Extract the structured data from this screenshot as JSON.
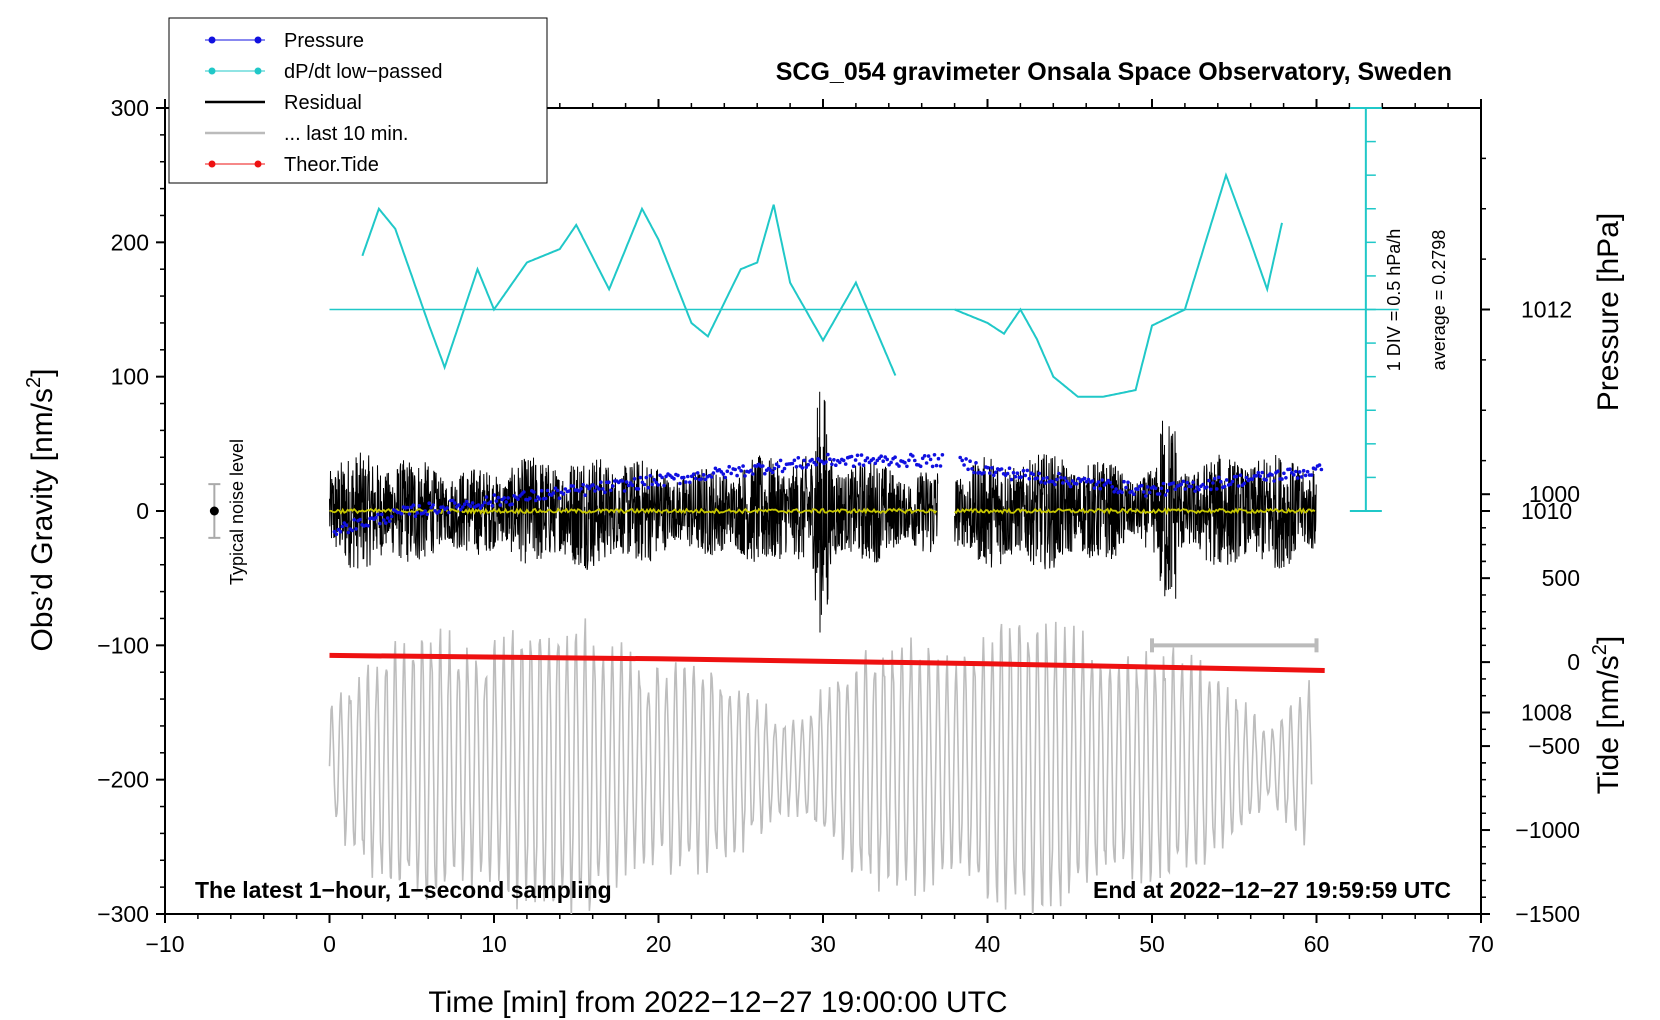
{
  "chart_data": {
    "type": "line",
    "title": "SCG_054 gravimeter Onsala Space Observatory, Sweden",
    "xlabel": "Time [min] from 2022−12−27 19:00:00 UTC",
    "xlim": [
      -10,
      70
    ],
    "xticks": [
      -10,
      0,
      10,
      20,
      30,
      40,
      50,
      60,
      70
    ],
    "xtick_labels": [
      "−10",
      "0",
      "10",
      "20",
      "30",
      "40",
      "50",
      "60",
      "70"
    ],
    "left_axis": {
      "label_main": "Obs’d Gravity [nm/s",
      "label_sup": "2",
      "label_end": "]",
      "ylim": [
        -300,
        300
      ],
      "ticks": [
        300,
        200,
        100,
        0,
        -100,
        -200,
        -300
      ],
      "tick_labels": [
        "300",
        "200",
        "100",
        "0",
        "−100",
        "−200",
        "−300"
      ]
    },
    "right_pressure_axis": {
      "label": "Pressure [hPa]",
      "ticks": [
        1012,
        1010,
        1008
      ],
      "tick_labels": [
        "1012",
        "1010",
        "1008"
      ],
      "range_hpa": [
        1006,
        1014
      ]
    },
    "right_tide_axis": {
      "label_main": "Tide [nm/s",
      "label_sup": "2",
      "label_end": "]",
      "ticks": [
        1000,
        500,
        0,
        -500,
        -1000,
        -1500
      ],
      "tick_labels": [
        "1000",
        "500",
        "0",
        "−500",
        "−1000",
        "−1500"
      ],
      "range": [
        -1500,
        3300
      ]
    },
    "legend": {
      "placement": "top-left",
      "entries": [
        {
          "label": "Pressure",
          "color": "#1010e0",
          "marker": "dot"
        },
        {
          "label": "dP/dt low−passed",
          "color": "#20c8c8",
          "marker": "dot"
        },
        {
          "label": "Residual",
          "color": "#000000",
          "marker": "line"
        },
        {
          "label": "... last 10 min.",
          "color": "#bbbbbb",
          "marker": "line"
        },
        {
          "label": "Theor.Tide",
          "color": "#ee1111",
          "marker": "dot"
        }
      ]
    },
    "series": [
      {
        "name": "Pressure",
        "unit": "hPa",
        "x": [
          0,
          5,
          10,
          15,
          20,
          25,
          30,
          35,
          37,
          38,
          40,
          45,
          50,
          55,
          60
        ],
        "values": [
          1009.8,
          1010.0,
          1010.1,
          1010.2,
          1010.3,
          1010.4,
          1010.5,
          1010.5,
          1010.5,
          1010.5,
          1010.4,
          1010.3,
          1010.2,
          1010.3,
          1010.4
        ]
      },
      {
        "name": "dP/dt low-passed",
        "unit": "left-axis nm/s^2 equivalent",
        "x": [
          2,
          3,
          4,
          6,
          7,
          9,
          10,
          12,
          14,
          15,
          17,
          19,
          20,
          22,
          23,
          25,
          26,
          27,
          28,
          30,
          32,
          34.5,
          38,
          40,
          41,
          42,
          43,
          44,
          45.5,
          47,
          49,
          50,
          52,
          54.5,
          56,
          57,
          58
        ],
        "values": [
          190,
          225,
          210,
          140,
          107,
          180,
          150,
          185,
          195,
          213,
          165,
          225,
          202,
          140,
          130,
          180,
          185,
          228,
          170,
          127,
          170,
          98,
          150,
          140,
          132,
          150,
          128,
          100,
          85,
          85,
          90,
          138,
          150,
          250,
          200,
          165,
          220
        ]
      },
      {
        "name": "Residual",
        "unit": "nm/s^2",
        "x_range": [
          0,
          60
        ],
        "gap": [
          37,
          38
        ],
        "amplitude_typical": 40,
        "amplitude_max": 130,
        "min": -120
      },
      {
        "name": "Residual (smoothed)",
        "unit": "nm/s^2",
        "x_range": [
          0,
          60
        ],
        "values_mean": 0
      },
      {
        "name": "... last 10 min.",
        "unit": "nm/s^2 (offset)",
        "x_range": [
          0,
          60
        ],
        "center": -190,
        "amplitude_max": 110
      },
      {
        "name": "Theor.Tide",
        "unit": "nm/s^2 (tide axis)",
        "x": [
          0,
          20,
          40,
          60.5
        ],
        "values": [
          40,
          20,
          -10,
          -50
        ]
      }
    ],
    "annotations": {
      "noise_label": "Typical noise level",
      "noise_bar": {
        "x": -7,
        "center": 0,
        "half_range": 20
      },
      "window_bar": {
        "x_start": 50,
        "x_end": 60,
        "y": -100
      },
      "scale_label_1": "1 DIV = 0.5 hPa/h",
      "scale_label_2": "average = 0.2798",
      "scale_bar_x": 63,
      "scale_bar_y_range": [
        0,
        300
      ],
      "scale_baseline_value": 150,
      "footer_left": "The latest 1−hour, 1−second sampling",
      "footer_right": "End at 2022−12−27 19:59:59 UTC"
    }
  }
}
